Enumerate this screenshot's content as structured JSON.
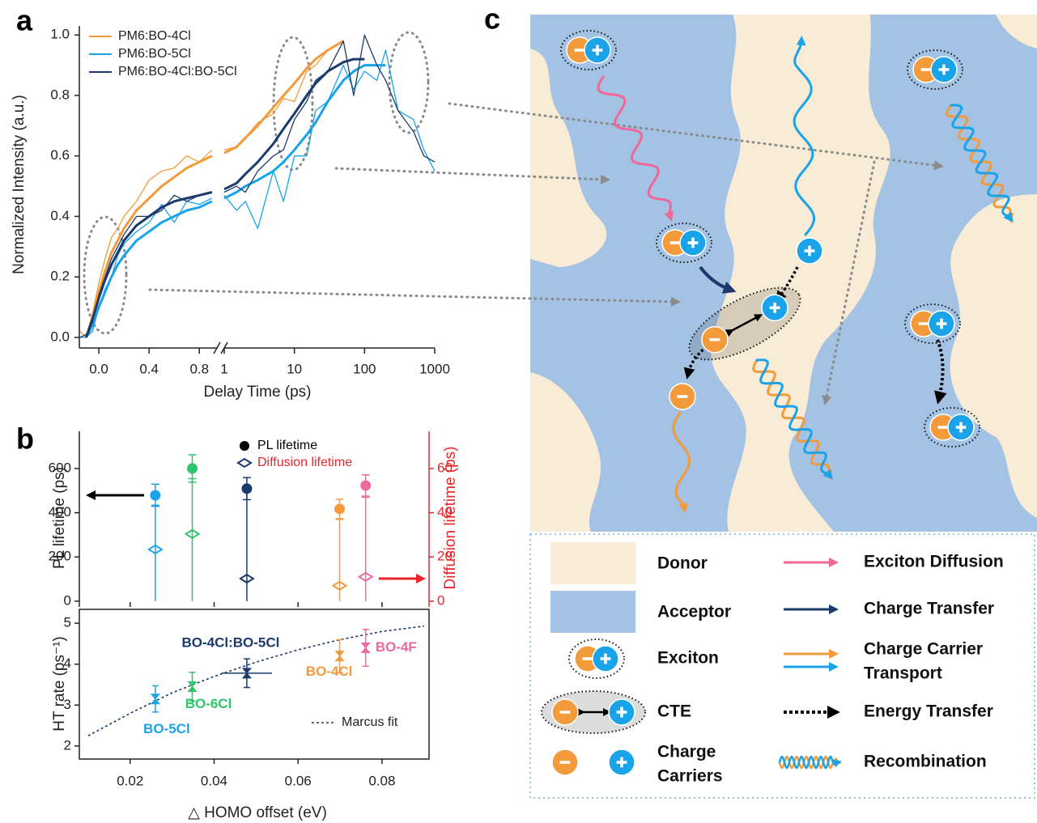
{
  "panel_labels": [
    "a",
    "b",
    "c"
  ],
  "chart_data": [
    {
      "type": "line",
      "ylabel": "Normalized Intensity (a.u.)",
      "xlabel": "Delay Time (ps)",
      "x": [
        -0.15,
        -0.1,
        -0.05,
        0,
        0.05,
        0.1,
        0.15,
        0.2,
        0.3,
        0.4,
        0.5,
        0.6,
        0.7,
        0.8,
        0.9,
        1,
        1.5,
        2,
        3,
        5,
        7,
        10,
        15,
        20,
        30,
        50,
        70,
        100,
        150,
        200,
        300,
        500,
        700,
        1000
      ],
      "x_segments": [
        {
          "scale": "linear",
          "xlim": [
            -0.155,
            0.94
          ],
          "xticks": [
            {
              "value": 0,
              "label": "0.0"
            },
            0.4,
            0.8
          ]
        },
        {
          "scale": "log",
          "xlim": [
            1,
            1000
          ],
          "xticks": [
            1,
            10,
            100,
            1000
          ]
        }
      ],
      "ylim": [
        -0.035,
        1.03
      ],
      "yticks": [
        {
          "value": 0,
          "label": "0.0"
        },
        0.2,
        0.4,
        0.6,
        0.8,
        {
          "value": 1,
          "label": "1.0"
        }
      ],
      "legend": "upper left",
      "series": [
        {
          "name": "PM6:BO-4Cl",
          "color": "#f39a3a",
          "values": [
            0.02,
            0.0,
            0.08,
            0.18,
            0.26,
            0.33,
            0.36,
            0.4,
            0.45,
            0.52,
            0.55,
            0.56,
            0.6,
            0.58,
            0.62,
            0.62,
            0.63,
            0.66,
            0.71,
            0.74,
            0.79,
            0.78,
            0.88,
            0.9,
            0.95,
            0.98,
            null,
            null,
            null,
            null,
            null,
            null,
            null,
            null
          ],
          "fit": [
            null,
            0.0,
            0.07,
            0.15,
            0.22,
            0.28,
            0.32,
            0.36,
            0.42,
            0.46,
            0.5,
            0.53,
            0.56,
            0.58,
            0.6,
            0.61,
            0.63,
            0.66,
            0.7,
            0.76,
            0.8,
            0.84,
            0.89,
            0.92,
            0.95,
            0.98,
            null,
            null,
            null,
            null,
            null,
            null,
            null,
            null
          ]
        },
        {
          "name": "PM6:BO-5Cl",
          "color": "#1aa3e8",
          "values": [
            0.0,
            0.0,
            0.02,
            0.1,
            0.16,
            0.2,
            0.27,
            0.31,
            0.35,
            0.38,
            0.44,
            0.38,
            0.45,
            0.44,
            0.46,
            0.47,
            0.42,
            0.45,
            0.36,
            0.55,
            0.45,
            0.6,
            0.6,
            0.75,
            0.78,
            0.9,
            0.82,
            0.88,
            0.85,
            0.95,
            0.75,
            0.72,
            0.62,
            0.55
          ],
          "fit": [
            null,
            0.0,
            0.04,
            0.1,
            0.15,
            0.2,
            0.24,
            0.27,
            0.32,
            0.35,
            0.38,
            0.4,
            0.42,
            0.43,
            0.45,
            0.46,
            0.48,
            0.5,
            0.52,
            0.55,
            0.58,
            0.62,
            0.67,
            0.71,
            0.78,
            0.85,
            0.88,
            0.9,
            0.9,
            0.9,
            null,
            null,
            null,
            null
          ]
        },
        {
          "name": "PM6:BO-4Cl:BO-5Cl",
          "color": "#1b3a6b",
          "values": [
            0.0,
            0.01,
            0.05,
            0.14,
            0.2,
            0.26,
            0.3,
            0.34,
            0.4,
            0.4,
            0.42,
            0.47,
            0.45,
            0.47,
            0.48,
            0.48,
            0.5,
            0.48,
            0.55,
            0.6,
            0.62,
            0.72,
            0.78,
            0.85,
            0.88,
            0.98,
            0.8,
            1.0,
            0.9,
            0.85,
            0.75,
            0.68,
            0.6,
            0.58
          ],
          "fit": [
            null,
            0.0,
            0.06,
            0.13,
            0.19,
            0.24,
            0.28,
            0.32,
            0.37,
            0.4,
            0.43,
            0.45,
            0.46,
            0.47,
            0.48,
            0.49,
            0.51,
            0.54,
            0.58,
            0.64,
            0.69,
            0.74,
            0.8,
            0.84,
            0.88,
            0.91,
            0.92,
            0.92,
            null,
            null,
            null,
            null,
            null,
            null
          ]
        }
      ]
    },
    {
      "type": "errorbar",
      "ylabel": "PL lifetime (ps)",
      "y2label": "Diffusion lifetime (ps)",
      "ylim": [
        -26,
        768
      ],
      "yticks": [
        0,
        200,
        400,
        600
      ],
      "y2lim": [
        -2.6,
        76.8
      ],
      "y2ticks": [
        0,
        20,
        40,
        60
      ],
      "y2color": "#e8262b",
      "series": [
        {
          "name": "PL lifetime",
          "color": "#000000",
          "marker": "circle",
          "values": [
            479,
            600,
            509,
            417,
            523
          ],
          "errors": [
            50,
            62,
            50,
            44,
            48
          ]
        },
        {
          "name": "Diffusion lifetime",
          "color": "#e8262b",
          "marker": "diamond",
          "axis": "y2",
          "values": [
            23.4,
            30.4,
            10.2,
            7,
            11
          ],
          "errors": [
            [
              23.4,
              20
            ],
            [
              30.4,
              25
            ],
            [
              10.2,
              40
            ],
            [
              7,
              30
            ],
            [
              11,
              36
            ]
          ]
        }
      ]
    },
    {
      "type": "errorbar",
      "ylabel": "HT rate (ps⁻¹)",
      "xlabel": "△  HOMO offset (eV)",
      "categories": [
        "BO-5Cl",
        "BO-6Cl",
        "BO-4Cl:BO-5Cl",
        "BO-4Cl",
        "BO-4F"
      ],
      "colors": [
        "#1aa3e8",
        "#2ec66a",
        "#1b3a6b",
        "#f39a3a",
        "#ec6aa0"
      ],
      "x": [
        0.026,
        0.0348,
        0.0478,
        0.0699,
        0.0761
      ],
      "x_errors": [
        0,
        0,
        0.006,
        0,
        0
      ],
      "values": [
        3.15,
        3.45,
        3.78,
        4.2,
        4.4
      ],
      "errors": [
        0.32,
        0.35,
        0.35,
        0.4,
        0.45
      ],
      "xlim": [
        0.0079,
        0.0912
      ],
      "xticks": [
        0.02,
        0.04,
        0.06,
        0.08
      ],
      "ylim": [
        1.68,
        5.34
      ],
      "yticks": [
        2,
        3,
        4,
        5
      ],
      "fit": {
        "name": "Marcus fit",
        "color": "#1b3a6b",
        "x": [
          0.01,
          0.02,
          0.03,
          0.04,
          0.05,
          0.06,
          0.07,
          0.08,
          0.09
        ],
        "values": [
          2.25,
          2.8,
          3.3,
          3.7,
          4.05,
          4.35,
          4.6,
          4.8,
          4.93
        ]
      }
    }
  ],
  "diagram": {
    "legend_left": [
      "Donor",
      "Acceptor",
      "Exciton",
      "CTE",
      [
        "Charge",
        "Carriers"
      ]
    ],
    "legend_right": [
      "Exciton Diffusion",
      "Charge Transfer",
      [
        "Charge Carrier",
        "Transport"
      ],
      "Energy Transfer",
      "Recombination"
    ]
  }
}
